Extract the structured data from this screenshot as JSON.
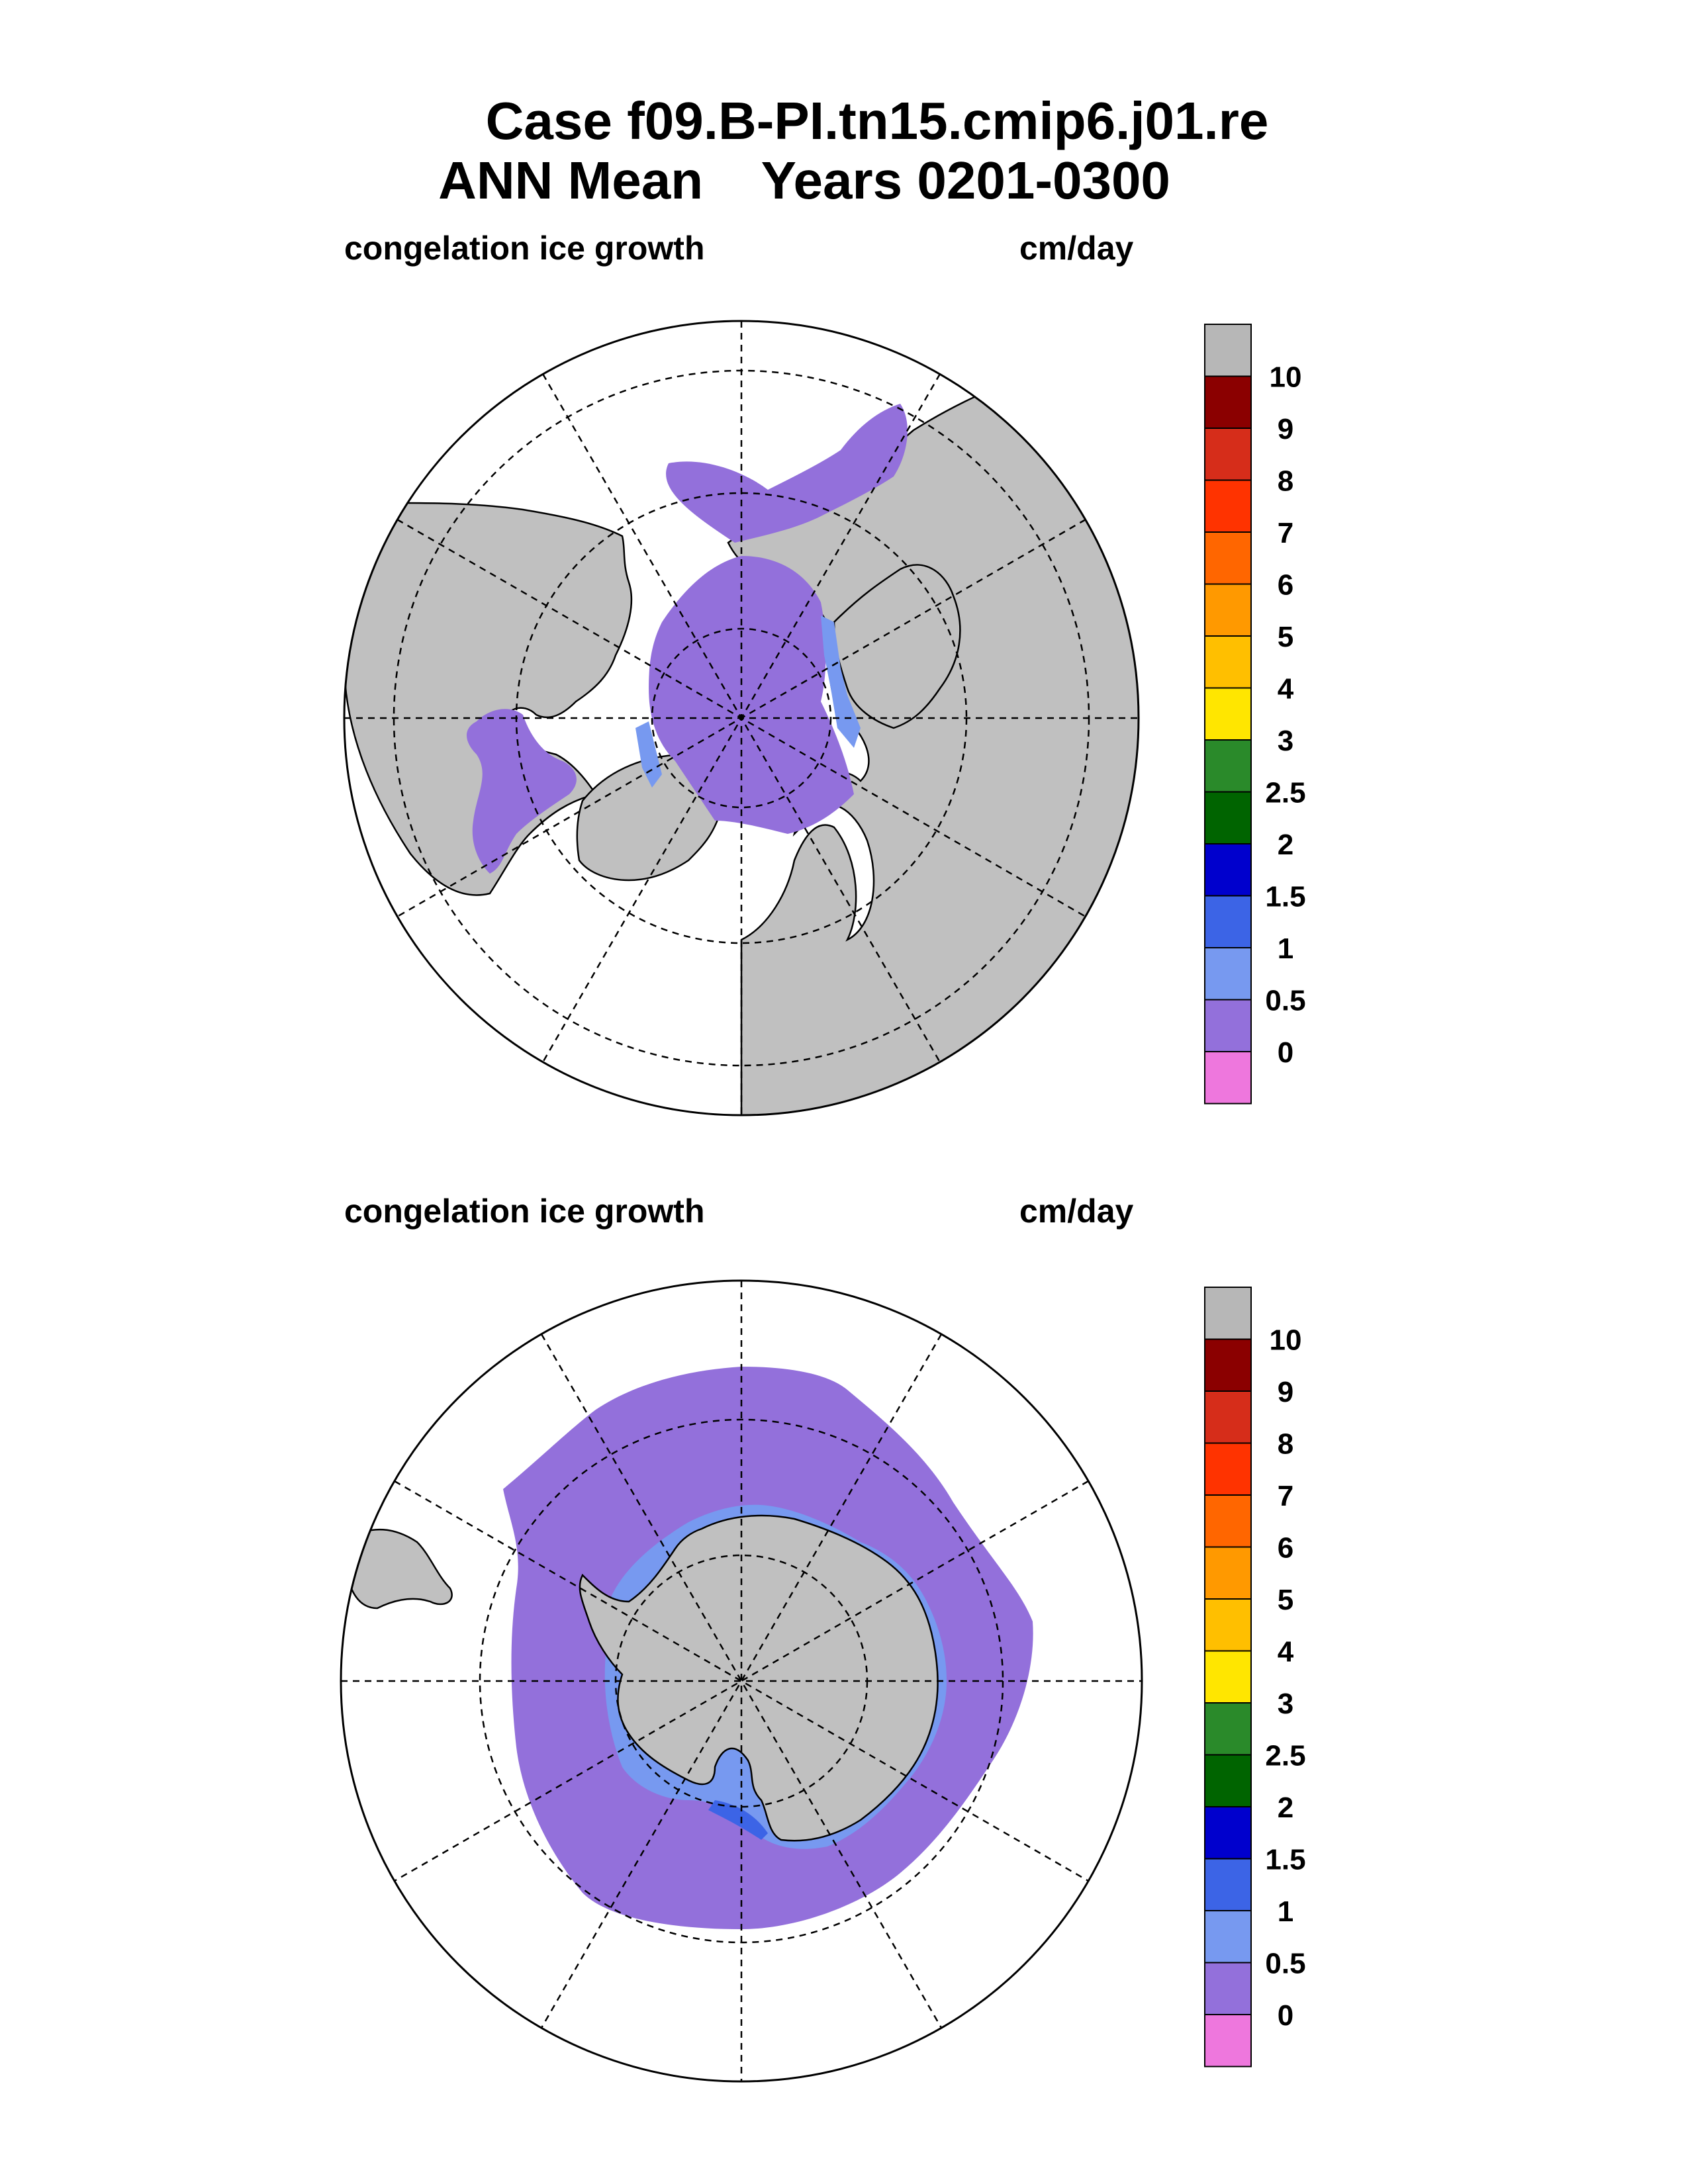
{
  "title": {
    "line1": "Case f09.B-PI.tn15.cmip6.j01.re",
    "line2": "ANN Mean    Years 0201-0300"
  },
  "panels": [
    {
      "hemisphere": "north",
      "variable_label": "congelation ice growth",
      "units_label": "cm/day"
    },
    {
      "hemisphere": "south",
      "variable_label": "congelation ice growth",
      "units_label": "cm/day"
    }
  ],
  "colorbar": {
    "labels": [
      "10",
      "9",
      "8",
      "7",
      "6",
      "5",
      "4",
      "3",
      "2.5",
      "2",
      "1.5",
      "1",
      "0.5",
      "0"
    ],
    "colors": [
      "#b7b7b7",
      "#8b0000",
      "#d62d1a",
      "#ff3300",
      "#ff6600",
      "#ff9900",
      "#ffbf00",
      "#ffe600",
      "#2a8a2a",
      "#006400",
      "#0000cd",
      "#3c64e6",
      "#7799f0",
      "#9370db",
      "#ee77dd"
    ]
  },
  "map_colors": {
    "land": "#c0c0c0",
    "ice_low": "#9370db",
    "ice_edge": "#7799f0",
    "ice_mid": "#3c64e6",
    "ice_high": "#0000cd",
    "ocean": "#ffffff"
  }
}
